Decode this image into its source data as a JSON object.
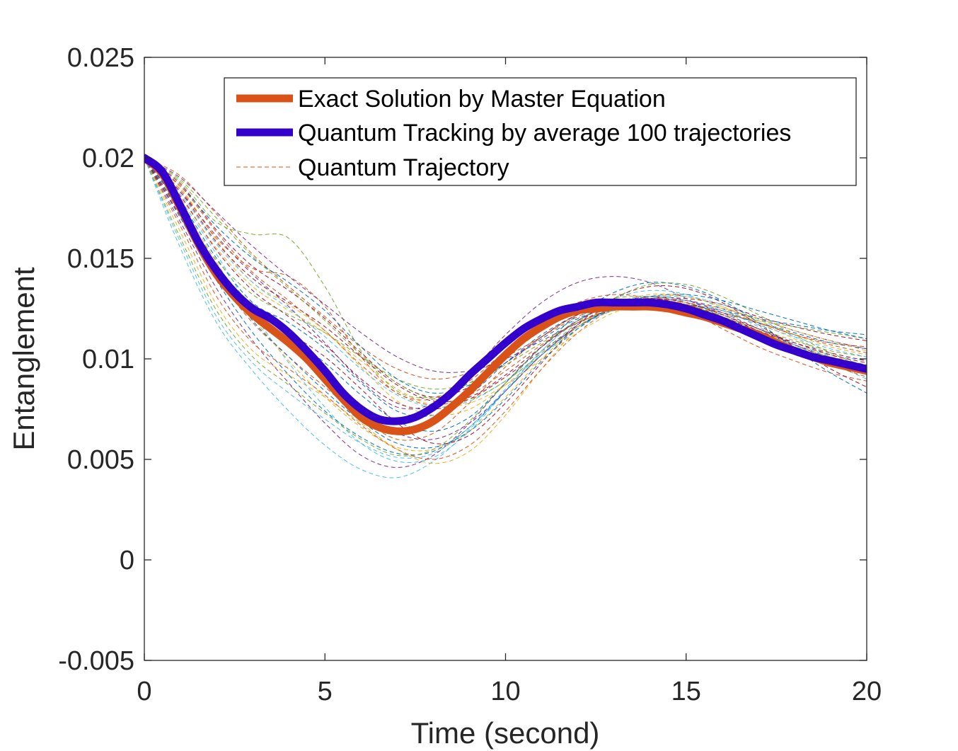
{
  "chart_data": {
    "type": "line",
    "title": "",
    "xlabel": "Time (second)",
    "ylabel": "Entanglement",
    "xlim": [
      0,
      20
    ],
    "ylim": [
      -0.005,
      0.025
    ],
    "xticks": [
      0,
      5,
      10,
      15,
      20
    ],
    "xtick_labels": [
      "0",
      "5",
      "10",
      "15",
      "20"
    ],
    "yticks": [
      -0.005,
      0,
      0.005,
      0.01,
      0.015,
      0.02,
      0.025
    ],
    "ytick_labels": [
      "-0.005",
      "0",
      "0.005",
      "0.01",
      "0.015",
      "0.02",
      "0.025"
    ],
    "grid": false,
    "legend_position": "top-right",
    "series": [
      {
        "name": "Exact Solution by Master Equation",
        "color": "#D95319",
        "style": "solid-thick",
        "x": [
          0,
          0.5,
          1,
          1.5,
          2,
          2.5,
          3,
          3.5,
          4,
          4.5,
          5,
          5.5,
          6,
          6.5,
          7,
          7.5,
          8,
          8.5,
          9,
          9.5,
          10,
          10.5,
          11,
          11.5,
          12,
          12.5,
          13,
          13.5,
          14,
          14.5,
          15,
          15.5,
          16,
          16.5,
          17,
          17.5,
          18,
          18.5,
          19,
          19.5,
          20
        ],
        "y": [
          0.02,
          0.0192,
          0.0175,
          0.0157,
          0.0142,
          0.0131,
          0.0122,
          0.0115,
          0.0108,
          0.01,
          0.009,
          0.008,
          0.0071,
          0.0066,
          0.0064,
          0.0065,
          0.0069,
          0.0076,
          0.0084,
          0.0093,
          0.0102,
          0.011,
          0.0116,
          0.0121,
          0.0124,
          0.0125,
          0.0126,
          0.0126,
          0.0126,
          0.0125,
          0.0123,
          0.0121,
          0.0118,
          0.0115,
          0.0112,
          0.0108,
          0.0104,
          0.0101,
          0.0098,
          0.0096,
          0.0094
        ]
      },
      {
        "name": "Quantum Tracking by average 100 trajectories",
        "color": "#3300CC",
        "style": "solid-thick",
        "x": [
          0,
          0.5,
          1,
          1.5,
          2,
          2.5,
          3,
          3.5,
          4,
          4.5,
          5,
          5.5,
          6,
          6.5,
          7,
          7.5,
          8,
          8.5,
          9,
          9.5,
          10,
          10.5,
          11,
          11.5,
          12,
          12.5,
          13,
          13.5,
          14,
          14.5,
          15,
          15.5,
          16,
          16.5,
          17,
          17.5,
          18,
          18.5,
          19,
          19.5,
          20
        ],
        "y": [
          0.02,
          0.0193,
          0.0176,
          0.0158,
          0.0144,
          0.0133,
          0.0125,
          0.012,
          0.0113,
          0.0104,
          0.0094,
          0.0083,
          0.0075,
          0.007,
          0.0069,
          0.0071,
          0.0076,
          0.0083,
          0.0092,
          0.01,
          0.0108,
          0.0115,
          0.012,
          0.0124,
          0.0126,
          0.0128,
          0.0128,
          0.0128,
          0.0128,
          0.0127,
          0.0125,
          0.0122,
          0.0119,
          0.0115,
          0.0111,
          0.0107,
          0.0104,
          0.0101,
          0.0099,
          0.0097,
          0.0095
        ]
      }
    ],
    "trajectories": {
      "name": "Quantum Trajectory",
      "style": "dashed-thin",
      "count": 30,
      "x": [
        0,
        1,
        2,
        3,
        4,
        5,
        6,
        7,
        8,
        9,
        10,
        11,
        12,
        13,
        14,
        15,
        16,
        17,
        18,
        19,
        20
      ],
      "colors": [
        "#0072BD",
        "#D95319",
        "#EDB120",
        "#7E2F8E",
        "#77AC30",
        "#4DBEEE",
        "#A2142F"
      ],
      "samples": [
        [
          0.02,
          0.0178,
          0.015,
          0.0128,
          0.0118,
          0.0105,
          0.0088,
          0.0074,
          0.0072,
          0.0082,
          0.0098,
          0.0112,
          0.0122,
          0.0128,
          0.0129,
          0.0127,
          0.0121,
          0.0114,
          0.0107,
          0.0101,
          0.0097
        ],
        [
          0.02,
          0.0172,
          0.0141,
          0.0118,
          0.0101,
          0.0086,
          0.0071,
          0.006,
          0.0063,
          0.0078,
          0.0096,
          0.0111,
          0.0122,
          0.0128,
          0.0129,
          0.0124,
          0.0115,
          0.0106,
          0.0099,
          0.0093,
          0.0089
        ],
        [
          0.02,
          0.0185,
          0.0159,
          0.0138,
          0.0127,
          0.0114,
          0.0096,
          0.0079,
          0.0072,
          0.0075,
          0.0087,
          0.0102,
          0.0116,
          0.0126,
          0.0131,
          0.0131,
          0.0126,
          0.0119,
          0.0112,
          0.0106,
          0.0102
        ],
        [
          0.02,
          0.0168,
          0.0135,
          0.0109,
          0.0088,
          0.0068,
          0.0052,
          0.0046,
          0.0052,
          0.0068,
          0.0088,
          0.0106,
          0.0119,
          0.0127,
          0.013,
          0.0128,
          0.0122,
          0.0114,
          0.0106,
          0.0099,
          0.0094
        ],
        [
          0.02,
          0.0188,
          0.0168,
          0.0162,
          0.016,
          0.0136,
          0.0104,
          0.0084,
          0.0081,
          0.0088,
          0.0101,
          0.0114,
          0.0124,
          0.013,
          0.0131,
          0.0128,
          0.0121,
          0.0113,
          0.0106,
          0.0101,
          0.0097
        ],
        [
          0.02,
          0.0155,
          0.0118,
          0.0094,
          0.0074,
          0.0057,
          0.0045,
          0.0041,
          0.0049,
          0.0065,
          0.0084,
          0.0102,
          0.0116,
          0.0124,
          0.0126,
          0.0124,
          0.0119,
          0.0113,
          0.0107,
          0.0102,
          0.0099
        ],
        [
          0.02,
          0.0181,
          0.0154,
          0.0134,
          0.0121,
          0.0107,
          0.009,
          0.0078,
          0.0075,
          0.008,
          0.0091,
          0.0104,
          0.0116,
          0.0125,
          0.013,
          0.013,
          0.0127,
          0.0121,
          0.0116,
          0.0112,
          0.0109
        ],
        [
          0.02,
          0.0176,
          0.0147,
          0.0126,
          0.0112,
          0.0098,
          0.0082,
          0.0069,
          0.0064,
          0.0071,
          0.0088,
          0.0106,
          0.0122,
          0.0133,
          0.0138,
          0.0136,
          0.0129,
          0.0118,
          0.0105,
          0.0093,
          0.0083
        ],
        [
          0.02,
          0.0191,
          0.0172,
          0.0152,
          0.0136,
          0.0121,
          0.0106,
          0.0095,
          0.009,
          0.0093,
          0.0101,
          0.0111,
          0.0121,
          0.0128,
          0.0131,
          0.0129,
          0.0124,
          0.0118,
          0.0112,
          0.0108,
          0.0106
        ],
        [
          0.02,
          0.0163,
          0.0127,
          0.0104,
          0.0092,
          0.0081,
          0.0068,
          0.0055,
          0.0048,
          0.0054,
          0.0072,
          0.0095,
          0.0115,
          0.0127,
          0.013,
          0.0127,
          0.0121,
          0.0114,
          0.0107,
          0.0101,
          0.0096
        ],
        [
          0.02,
          0.0183,
          0.0161,
          0.0142,
          0.0126,
          0.0108,
          0.0089,
          0.0076,
          0.0078,
          0.0093,
          0.0112,
          0.0128,
          0.0138,
          0.0141,
          0.0138,
          0.013,
          0.0121,
          0.0113,
          0.0105,
          0.0098,
          0.0092
        ],
        [
          0.02,
          0.0174,
          0.0149,
          0.0132,
          0.0122,
          0.0113,
          0.0101,
          0.009,
          0.0085,
          0.0088,
          0.0097,
          0.0108,
          0.0118,
          0.0124,
          0.0126,
          0.0125,
          0.0122,
          0.0119,
          0.0116,
          0.0113,
          0.011
        ],
        [
          0.02,
          0.0179,
          0.0152,
          0.0123,
          0.0098,
          0.0076,
          0.0058,
          0.0049,
          0.0051,
          0.0064,
          0.0084,
          0.0104,
          0.012,
          0.013,
          0.0134,
          0.0132,
          0.0125,
          0.0116,
          0.0107,
          0.0098,
          0.009
        ],
        [
          0.02,
          0.0187,
          0.0164,
          0.0146,
          0.0134,
          0.012,
          0.0103,
          0.0088,
          0.0081,
          0.0086,
          0.0098,
          0.0111,
          0.0122,
          0.0128,
          0.013,
          0.0127,
          0.0121,
          0.0114,
          0.0108,
          0.0103,
          0.0099
        ],
        [
          0.02,
          0.017,
          0.0139,
          0.0113,
          0.0092,
          0.0074,
          0.0061,
          0.0053,
          0.0054,
          0.0066,
          0.0084,
          0.0102,
          0.0116,
          0.0125,
          0.0128,
          0.0127,
          0.0123,
          0.0118,
          0.0113,
          0.0108,
          0.0105
        ],
        [
          0.02,
          0.0184,
          0.016,
          0.0145,
          0.0141,
          0.0126,
          0.0101,
          0.0083,
          0.008,
          0.0089,
          0.0104,
          0.0118,
          0.0128,
          0.0132,
          0.013,
          0.0125,
          0.0118,
          0.0111,
          0.0104,
          0.0098,
          0.0094
        ],
        [
          0.02,
          0.0177,
          0.0148,
          0.0121,
          0.0099,
          0.0081,
          0.0066,
          0.0056,
          0.0055,
          0.0064,
          0.0081,
          0.01,
          0.0116,
          0.0127,
          0.0132,
          0.0131,
          0.0126,
          0.0118,
          0.011,
          0.0102,
          0.0096
        ],
        [
          0.02,
          0.019,
          0.0173,
          0.0156,
          0.0141,
          0.0127,
          0.0113,
          0.0101,
          0.0094,
          0.0094,
          0.01,
          0.0109,
          0.0118,
          0.0125,
          0.0129,
          0.0129,
          0.0125,
          0.012,
          0.0114,
          0.0109,
          0.0105
        ],
        [
          0.02,
          0.016,
          0.0124,
          0.0101,
          0.0087,
          0.0073,
          0.006,
          0.0052,
          0.0055,
          0.0069,
          0.0088,
          0.0106,
          0.0119,
          0.0127,
          0.0129,
          0.0127,
          0.0121,
          0.0115,
          0.0109,
          0.0104,
          0.0101
        ],
        [
          0.02,
          0.0182,
          0.0157,
          0.0138,
          0.0125,
          0.0111,
          0.0095,
          0.0082,
          0.0076,
          0.0079,
          0.0089,
          0.0102,
          0.0115,
          0.0125,
          0.013,
          0.0131,
          0.0127,
          0.012,
          0.0111,
          0.0101,
          0.0092
        ],
        [
          0.02,
          0.0171,
          0.0143,
          0.0124,
          0.0113,
          0.0101,
          0.0085,
          0.0068,
          0.0058,
          0.0062,
          0.0078,
          0.0098,
          0.0117,
          0.013,
          0.0136,
          0.0135,
          0.0128,
          0.0117,
          0.0106,
          0.0095,
          0.0086
        ],
        [
          0.02,
          0.0186,
          0.0166,
          0.015,
          0.0138,
          0.0124,
          0.0106,
          0.009,
          0.0083,
          0.0087,
          0.0098,
          0.011,
          0.012,
          0.0126,
          0.0128,
          0.0127,
          0.0124,
          0.012,
          0.0117,
          0.0114,
          0.0112
        ],
        [
          0.02,
          0.0166,
          0.0131,
          0.0108,
          0.0095,
          0.0082,
          0.0067,
          0.0055,
          0.005,
          0.0057,
          0.0074,
          0.0095,
          0.0113,
          0.0125,
          0.0129,
          0.0127,
          0.012,
          0.0112,
          0.0104,
          0.0097,
          0.0091
        ],
        [
          0.02,
          0.018,
          0.0155,
          0.0136,
          0.0124,
          0.0113,
          0.0099,
          0.0085,
          0.0077,
          0.0078,
          0.0087,
          0.01,
          0.0113,
          0.0123,
          0.0128,
          0.0128,
          0.0125,
          0.012,
          0.0114,
          0.0109,
          0.0104
        ],
        [
          0.02,
          0.0175,
          0.0145,
          0.0122,
          0.0106,
          0.009,
          0.0074,
          0.0063,
          0.006,
          0.0068,
          0.0084,
          0.0102,
          0.0117,
          0.0127,
          0.0131,
          0.0129,
          0.0123,
          0.0115,
          0.0107,
          0.01,
          0.0094
        ],
        [
          0.02,
          0.0189,
          0.017,
          0.0151,
          0.0135,
          0.0119,
          0.0102,
          0.0088,
          0.008,
          0.008,
          0.0089,
          0.0103,
          0.0118,
          0.013,
          0.0137,
          0.0137,
          0.0131,
          0.0122,
          0.0112,
          0.0103,
          0.0096
        ],
        [
          0.02,
          0.0158,
          0.0121,
          0.0098,
          0.0083,
          0.007,
          0.0058,
          0.0051,
          0.0053,
          0.0066,
          0.0085,
          0.0104,
          0.0119,
          0.0128,
          0.0131,
          0.0129,
          0.0124,
          0.0117,
          0.0111,
          0.0105,
          0.0101
        ],
        [
          0.02,
          0.0183,
          0.0158,
          0.014,
          0.0128,
          0.0116,
          0.0101,
          0.0087,
          0.0079,
          0.0081,
          0.0092,
          0.0106,
          0.0119,
          0.0127,
          0.013,
          0.0128,
          0.0122,
          0.0115,
          0.0108,
          0.0102,
          0.0098
        ],
        [
          0.02,
          0.0173,
          0.0144,
          0.0119,
          0.0101,
          0.0084,
          0.0069,
          0.0058,
          0.0056,
          0.0064,
          0.008,
          0.0099,
          0.0115,
          0.0126,
          0.0131,
          0.0132,
          0.0129,
          0.0124,
          0.0119,
          0.0114,
          0.011
        ],
        [
          0.02,
          0.0186,
          0.0163,
          0.0143,
          0.0129,
          0.0114,
          0.0097,
          0.0083,
          0.0077,
          0.0082,
          0.0094,
          0.0107,
          0.0118,
          0.0125,
          0.0128,
          0.0127,
          0.0123,
          0.0118,
          0.0112,
          0.0107,
          0.0103
        ]
      ]
    },
    "legend": [
      {
        "label": "Exact Solution by Master Equation",
        "color": "#D95319",
        "style": "solid-thick"
      },
      {
        "label": "Quantum Tracking by average 100 trajectories",
        "color": "#3300CC",
        "style": "solid-thick"
      },
      {
        "label": "Quantum Trajectory",
        "color": "#D95319",
        "style": "dashed-thin"
      }
    ]
  }
}
